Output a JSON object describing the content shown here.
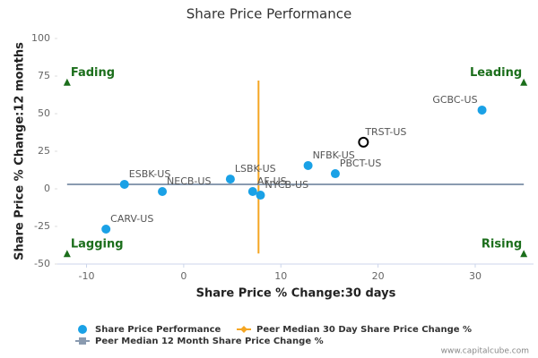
{
  "chart_data": {
    "type": "scatter",
    "title": "Share Price Performance",
    "x_label": "Share Price % Change:30 days",
    "y_label": "Share Price % Change:12 months",
    "xlim": [
      -13,
      36
    ],
    "xticks": [
      -10,
      0,
      10,
      20,
      30
    ],
    "ylim": [
      -50,
      100
    ],
    "yticks": [
      -50,
      -25,
      0,
      25,
      50,
      75,
      100
    ],
    "series": [
      {
        "name": "Share Price Performance",
        "color": "#1aa1e6",
        "labels": [
          "CARV-US",
          "ESBK-US",
          "NECB-US",
          "LSBK-US",
          "AF-US",
          "NYCB-US",
          "NFBK-US",
          "PBCT-US",
          "TRST-US",
          "GCBC-US"
        ],
        "x": [
          -8.0,
          -6.1,
          -2.2,
          4.8,
          7.1,
          7.9,
          12.8,
          15.6,
          18.5,
          30.7
        ],
        "values": [
          -26.8,
          3.0,
          -1.8,
          6.5,
          -1.8,
          -4.2,
          15.5,
          10.1,
          31.0,
          52.4
        ],
        "highlight_index": 8
      },
      {
        "name": "Peer Median 30 Day Share Price Change %",
        "color": "#f5a623",
        "x": [
          7.7,
          7.7
        ],
        "values": [
          -43,
          72
        ]
      },
      {
        "name": "Peer Median 12 Month Share Price Change %",
        "color": "#8a9bb0",
        "x": [
          -12,
          35
        ],
        "values": [
          3.0,
          3.0
        ]
      }
    ],
    "annotations": [
      {
        "text": "Fading",
        "x": -12,
        "y": 71,
        "anchor": "start"
      },
      {
        "text": "Leading",
        "x": 35,
        "y": 71,
        "anchor": "end"
      },
      {
        "text": "Lagging",
        "x": -12,
        "y": -43,
        "anchor": "start"
      },
      {
        "text": "Rising",
        "x": 35,
        "y": -43,
        "anchor": "end"
      }
    ],
    "watermark": "www.capitalcube.com"
  }
}
